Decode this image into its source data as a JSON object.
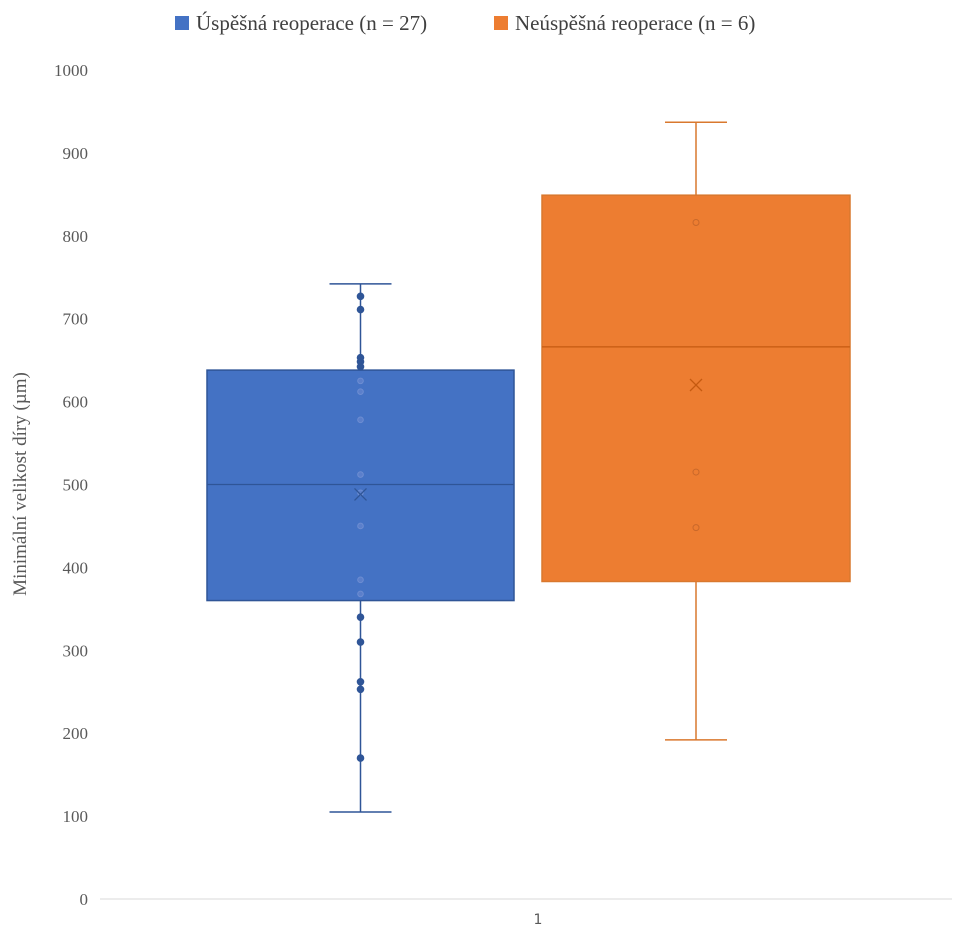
{
  "chart_data": {
    "type": "box",
    "title": "",
    "ylabel": "Minimální velikost díry (µm)",
    "xlabel": "",
    "categories": [
      "1"
    ],
    "ylim": [
      0,
      1000
    ],
    "yticks": [
      0,
      100,
      200,
      300,
      400,
      500,
      600,
      700,
      800,
      900,
      1000
    ],
    "grid": false,
    "legend_position": "top",
    "series": [
      {
        "name": "Úspěšná reoperace (n = 27)",
        "color": "#4472C4",
        "whisker_low": 105,
        "q1": 360,
        "median": 500,
        "mean": 488,
        "q3": 638,
        "whisker_high": 742,
        "points": [
          170,
          253,
          262,
          310,
          340,
          368,
          385,
          450,
          490,
          512,
          578,
          612,
          625,
          642,
          648,
          653,
          711,
          727
        ]
      },
      {
        "name": "Neúspěšná reoperace (n = 6)",
        "color": "#ED7D31",
        "whisker_low": 192,
        "q1": 383,
        "median": 666,
        "mean": 620,
        "q3": 849,
        "whisker_high": 937,
        "points": [
          448,
          515,
          816
        ]
      }
    ]
  }
}
